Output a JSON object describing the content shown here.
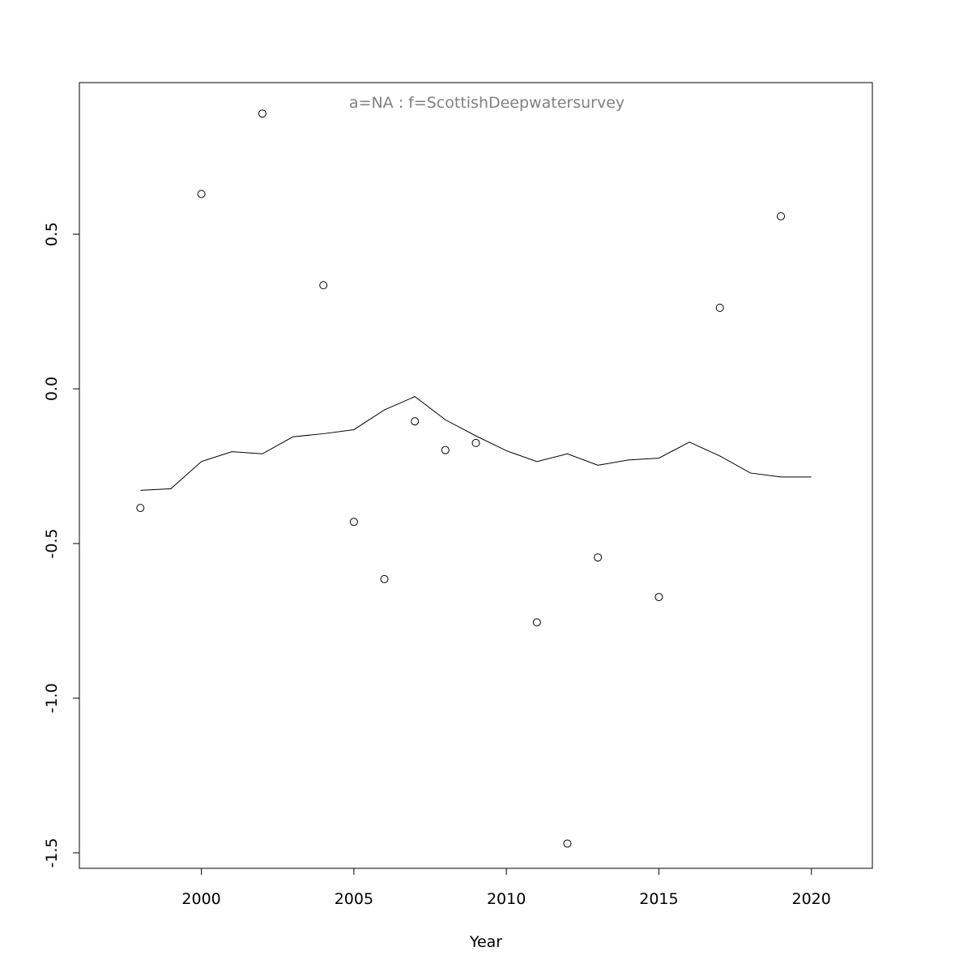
{
  "chart_data": {
    "type": "scatter",
    "title": "a=NA  :  f=ScottishDeepwatersurvey",
    "xlabel": "Year",
    "ylabel": "",
    "xlim": [
      1996,
      2022
    ],
    "ylim": [
      -1.55,
      0.99
    ],
    "x_ticks": [
      2000,
      2005,
      2010,
      2015,
      2020
    ],
    "y_ticks": [
      -1.5,
      -1.0,
      -0.5,
      0.0,
      0.5
    ],
    "x_tick_labels": [
      "2000",
      "2005",
      "2010",
      "2015",
      "2020"
    ],
    "y_tick_labels": [
      "-1.5",
      "-1.0",
      "-0.5",
      "0.0",
      "0.5"
    ],
    "grid": false,
    "legend": "none",
    "colors": {
      "points": "#000000",
      "line": "#000000",
      "title": "#808080",
      "frame": "#000000"
    },
    "series": [
      {
        "kind": "points",
        "x": [
          1998,
          2000,
          2002,
          2004,
          2005,
          2006,
          2007,
          2008,
          2009,
          2011,
          2012,
          2013,
          2015,
          2017,
          2019
        ],
        "y": [
          -0.385,
          0.63,
          0.89,
          0.335,
          -0.43,
          -0.615,
          -0.105,
          -0.198,
          -0.175,
          -0.755,
          -1.47,
          -0.545,
          -0.673,
          0.262,
          0.558
        ]
      },
      {
        "kind": "line",
        "x": [
          1998,
          1999,
          2000,
          2001,
          2002,
          2003,
          2004,
          2005,
          2006,
          2007,
          2008,
          2009,
          2010,
          2011,
          2012,
          2013,
          2014,
          2015,
          2016,
          2017,
          2018,
          2019,
          2020
        ],
        "y": [
          -0.328,
          -0.323,
          -0.235,
          -0.203,
          -0.21,
          -0.155,
          -0.145,
          -0.132,
          -0.068,
          -0.025,
          -0.1,
          -0.152,
          -0.2,
          -0.235,
          -0.21,
          -0.247,
          -0.23,
          -0.224,
          -0.172,
          -0.217,
          -0.272,
          -0.285,
          -0.285
        ]
      }
    ]
  }
}
